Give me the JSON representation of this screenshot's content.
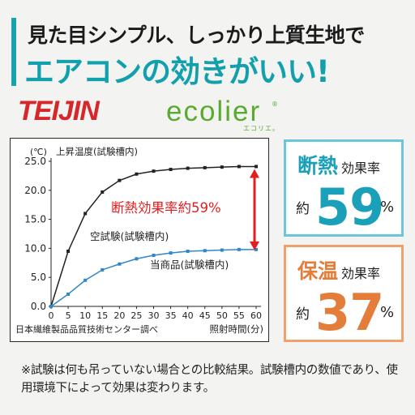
{
  "headline": {
    "line1": "見た目シンプル、しっかり上質生地で",
    "line2": "エアコンの効きがいい!"
  },
  "brand": {
    "name": "TEIJIN",
    "product": "ecolier",
    "reg_mark": "®",
    "product_kana": "エコリエ。"
  },
  "colors": {
    "accent": "#1aa3ae",
    "brand_red": "#d6282b",
    "brand_green": "#5aaa2f",
    "insulation": "#1aa0b8",
    "warmth": "#e47d3a",
    "highlight": "#e02020"
  },
  "stats": {
    "insulation": {
      "label": "断熱",
      "sublabel": "効果率",
      "approx": "約",
      "value": "59",
      "unit": "%"
    },
    "warmth": {
      "label": "保温",
      "sublabel": "効果率",
      "approx": "約",
      "value": "37",
      "unit": "%"
    }
  },
  "footnote": "※試験は何も吊っていない場合との比較結果。試験槽内の数値であり、使用環境下によって効果は変わります。",
  "chart_data": {
    "type": "line",
    "unit_label": "(℃)",
    "ylabel": "上昇温度(試験槽内)",
    "xlabel": "照射時間(分)",
    "source": "日本繊維製品品質技術センター調べ",
    "ylim": [
      0,
      25
    ],
    "yticks": [
      "0.0",
      "5.0",
      "10.0",
      "15.0",
      "20.0",
      "25.0"
    ],
    "xlim": [
      0,
      60
    ],
    "x": [
      0,
      5,
      10,
      15,
      20,
      25,
      30,
      35,
      40,
      45,
      50,
      55,
      60
    ],
    "grid": false,
    "series": [
      {
        "name": "空試験(試験槽内)",
        "color": "#222222",
        "values": [
          0,
          9.5,
          16,
          19.7,
          21.7,
          22.8,
          23.3,
          23.6,
          23.8,
          23.9,
          24.0,
          24.1,
          24.1
        ]
      },
      {
        "name": "当商品(試験槽内)",
        "color": "#2f86c8",
        "values": [
          0,
          2.1,
          4.5,
          6.3,
          7.3,
          8.2,
          8.8,
          9.2,
          9.5,
          9.6,
          9.7,
          9.8,
          9.8
        ]
      }
    ],
    "annotation": {
      "text": "断熱効果率約59%",
      "x": 60,
      "y_from": 9.8,
      "y_to": 24.1
    }
  }
}
